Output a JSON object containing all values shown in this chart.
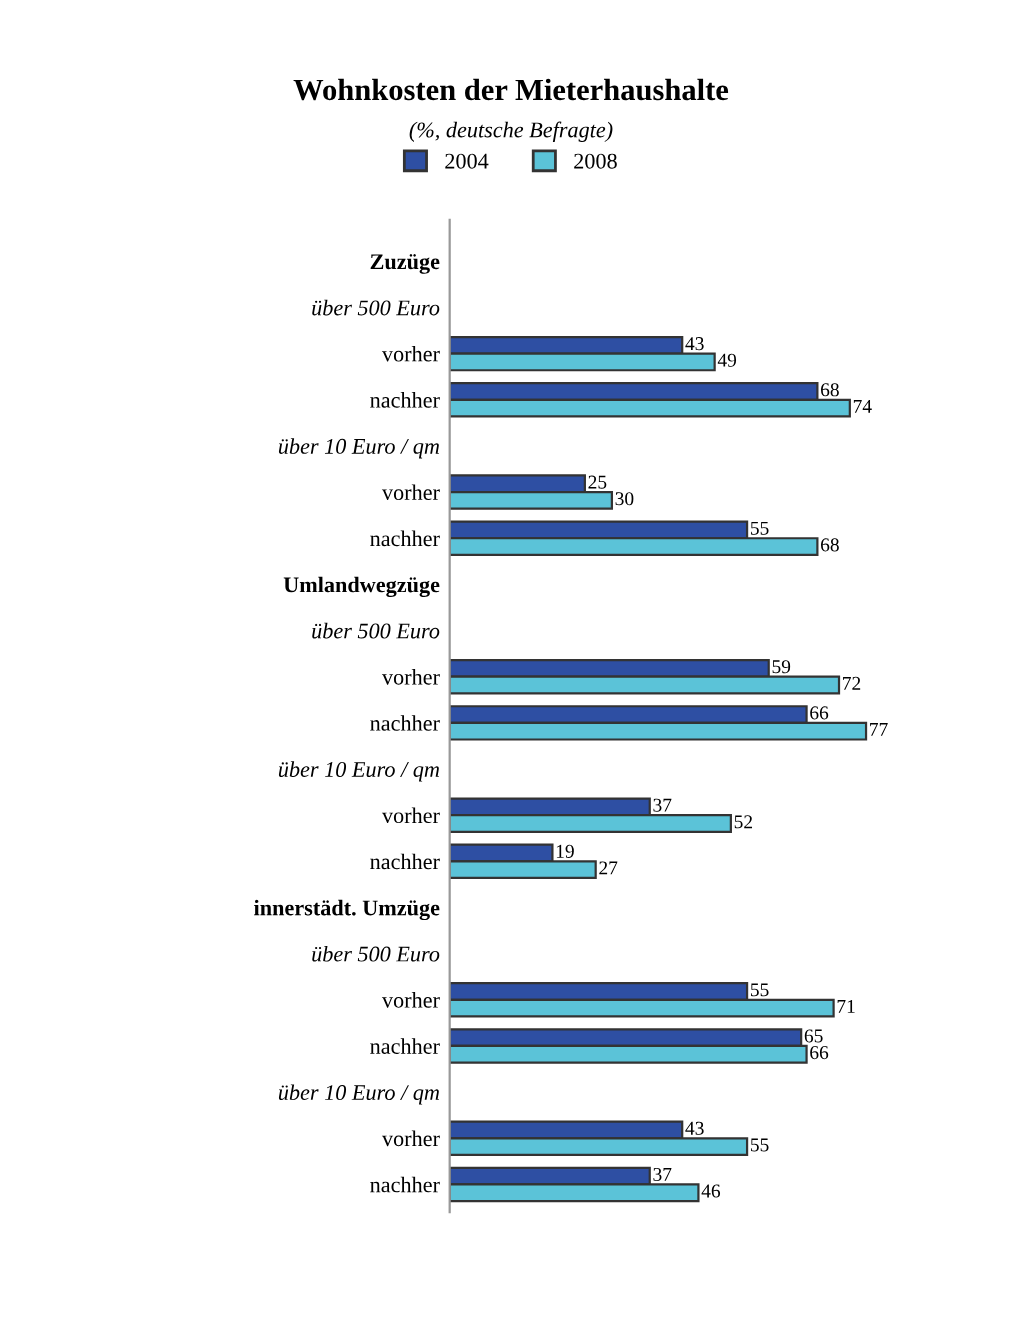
{
  "chart_data": {
    "type": "bar",
    "orientation": "horizontal",
    "title": "Wohnkosten der Mieterhaushalte",
    "subtitle": "(%, deutsche Befragte)",
    "categories": [
      "Zuzüge",
      "über 500 Euro",
      "vorher",
      "nachher",
      "über 10 Euro / qm",
      "vorher",
      "nachher",
      "Umlandwegzüge",
      "über 500 Euro",
      "vorher",
      "nachher",
      "über 10 Euro / qm",
      "vorher",
      "nachher",
      "innerstädt. Umzüge",
      "über 500 Euro",
      "vorher",
      "nachher",
      "über 10 Euro / qm",
      "vorher",
      "nachher"
    ],
    "series": [
      {
        "name": "2004",
        "color": "#2e4fa3",
        "values": [
          null,
          null,
          43,
          68,
          null,
          25,
          55,
          null,
          null,
          59,
          66,
          null,
          37,
          19,
          null,
          null,
          55,
          65,
          null,
          43,
          37
        ]
      },
      {
        "name": "2008",
        "color": "#5bc3d8",
        "values": [
          null,
          null,
          49,
          74,
          null,
          30,
          68,
          null,
          null,
          72,
          77,
          null,
          52,
          27,
          null,
          null,
          71,
          66,
          null,
          55,
          46
        ]
      }
    ],
    "data_labels": true,
    "legend": "top",
    "grid": false
  }
}
